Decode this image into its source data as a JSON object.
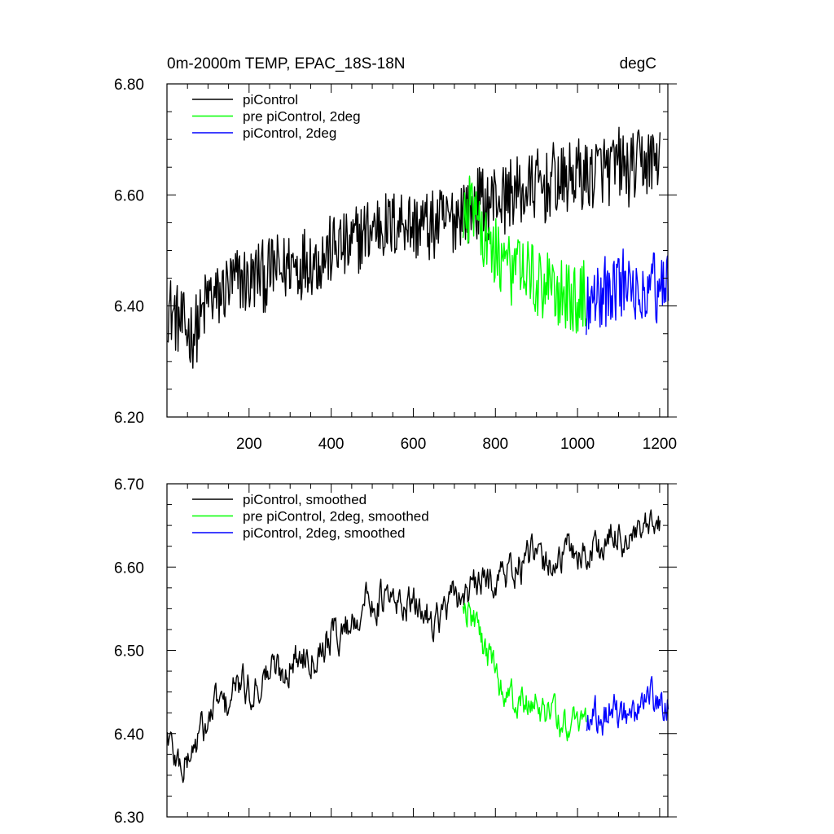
{
  "chart_data": [
    {
      "type": "line",
      "title": "0m-2000m TEMP, EPAC_18S-18N",
      "units": "degC",
      "xlabel": "",
      "ylabel": "",
      "xlim": [
        0,
        1220
      ],
      "ylim": [
        6.2,
        6.8
      ],
      "xticks": [
        200,
        400,
        600,
        800,
        1000,
        1200
      ],
      "xtick_labels": [
        "200",
        "400",
        "600",
        "800",
        "1000",
        "1200"
      ],
      "yticks": [
        6.2,
        6.4,
        6.6,
        6.8
      ],
      "ytick_labels": [
        "6.20",
        "6.40",
        "6.60",
        "6.80"
      ],
      "legend": {
        "placement": "top-left",
        "entries": [
          "piControl",
          "pre piControl, 2deg",
          "piControl, 2deg"
        ]
      },
      "series": [
        {
          "name": "piControl",
          "color": "#000000",
          "x_start": 1,
          "x_step": 20,
          "values": [
            6.4,
            6.38,
            6.36,
            6.35,
            6.37,
            6.42,
            6.41,
            6.43,
            6.44,
            6.45,
            6.44,
            6.46,
            6.45,
            6.47,
            6.46,
            6.48,
            6.47,
            6.49,
            6.48,
            6.49,
            6.5,
            6.51,
            6.5,
            6.52,
            6.53,
            6.54,
            6.55,
            6.54,
            6.55,
            6.56,
            6.54,
            6.55,
            6.54,
            6.55,
            6.55,
            6.56,
            6.58,
            6.57,
            6.59,
            6.58,
            6.6,
            6.59,
            6.61,
            6.6,
            6.61,
            6.62,
            6.61,
            6.63,
            6.62,
            6.63,
            6.64,
            6.63,
            6.64,
            6.65,
            6.64,
            6.66,
            6.64,
            6.65,
            6.66,
            6.66,
            6.67
          ]
        },
        {
          "name": "pre piControl, 2deg",
          "color": "#00ff00",
          "x_start": 721,
          "x_step": 20,
          "values": [
            6.58,
            6.57,
            6.55,
            6.51,
            6.5,
            6.48,
            6.46,
            6.46,
            6.45,
            6.44,
            6.44,
            6.43,
            6.42,
            6.42,
            6.41,
            6.42
          ]
        },
        {
          "name": "piControl, 2deg",
          "color": "#0000ff",
          "x_start": 1021,
          "x_step": 20,
          "values": [
            6.4,
            6.43,
            6.42,
            6.44,
            6.43,
            6.45,
            6.43,
            6.44,
            6.44,
            6.43,
            6.44
          ]
        }
      ]
    },
    {
      "type": "line",
      "title": "",
      "xlabel": "",
      "ylabel": "",
      "xlim": [
        0,
        1220
      ],
      "ylim": [
        6.3,
        6.7
      ],
      "xticks": [
        200,
        400,
        600,
        800,
        1000,
        1200
      ],
      "yticks": [
        6.3,
        6.4,
        6.5,
        6.6,
        6.7
      ],
      "ytick_labels": [
        "6.30",
        "6.40",
        "6.50",
        "6.60",
        "6.70"
      ],
      "legend": {
        "placement": "top-left",
        "entries": [
          "piControl, smoothed",
          "pre piControl, 2deg, smoothed",
          "piControl, 2deg, smoothed"
        ]
      },
      "series": [
        {
          "name": "piControl, smoothed",
          "color": "#000000",
          "x_start": 1,
          "x_step": 20,
          "values": [
            6.4,
            6.37,
            6.36,
            6.38,
            6.4,
            6.41,
            6.44,
            6.43,
            6.45,
            6.46,
            6.45,
            6.46,
            6.47,
            6.48,
            6.47,
            6.49,
            6.49,
            6.5,
            6.5,
            6.51,
            6.52,
            6.52,
            6.53,
            6.54,
            6.56,
            6.56,
            6.56,
            6.56,
            6.55,
            6.56,
            6.55,
            6.55,
            6.54,
            6.54,
            6.55,
            6.56,
            6.57,
            6.57,
            6.58,
            6.58,
            6.59,
            6.59,
            6.6,
            6.6,
            6.61,
            6.61,
            6.6,
            6.61,
            6.61,
            6.62,
            6.62,
            6.61,
            6.63,
            6.62,
            6.63,
            6.64,
            6.63,
            6.63,
            6.64,
            6.64,
            6.65
          ]
        },
        {
          "name": "pre piControl, 2deg, smoothed",
          "color": "#00ff00",
          "x_start": 721,
          "x_step": 20,
          "values": [
            6.55,
            6.54,
            6.52,
            6.49,
            6.47,
            6.45,
            6.44,
            6.44,
            6.43,
            6.43,
            6.42,
            6.42,
            6.41,
            6.41,
            6.41,
            6.41
          ]
        },
        {
          "name": "piControl, 2deg, smoothed",
          "color": "#0000ff",
          "x_start": 1021,
          "x_step": 20,
          "values": [
            6.4,
            6.42,
            6.42,
            6.43,
            6.42,
            6.43,
            6.42,
            6.43,
            6.44,
            6.43,
            6.44
          ]
        }
      ]
    }
  ]
}
